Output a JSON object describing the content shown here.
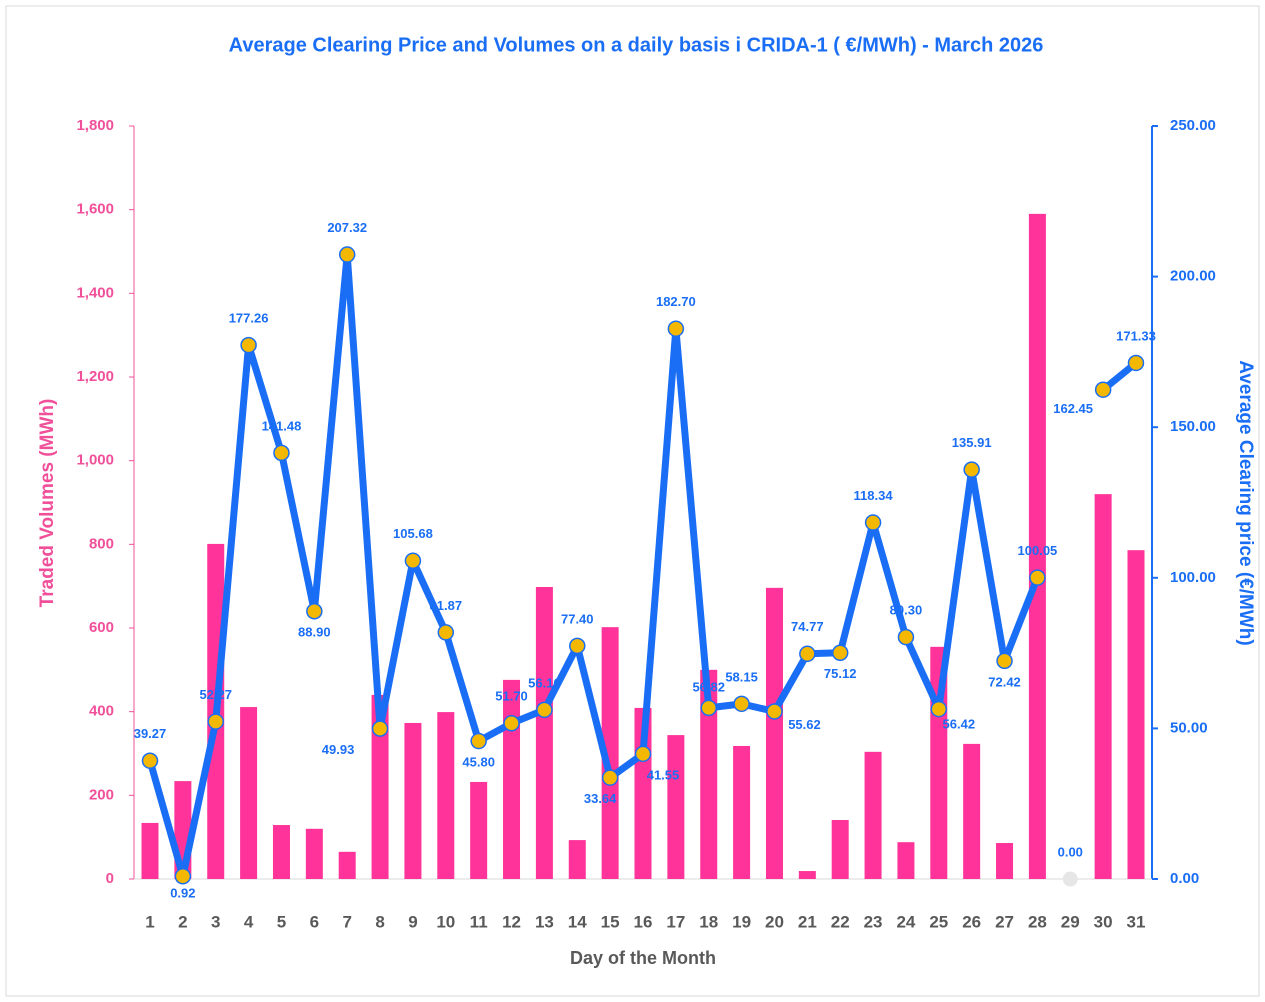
{
  "chart_data": {
    "type": "bar-line",
    "title": "Average Clearing Price and Volumes on a daily basis i CRIDA-1 ( €/MWh) - March 2026",
    "x_label": "Day of the Month",
    "y_label": "Traded Volumes (MWh)",
    "y2_label": "Average Clearing price (€/MWh)",
    "categories": [
      "1",
      "2",
      "3",
      "4",
      "5",
      "6",
      "7",
      "8",
      "9",
      "10",
      "11",
      "12",
      "13",
      "14",
      "15",
      "16",
      "17",
      "18",
      "19",
      "20",
      "21",
      "22",
      "23",
      "24",
      "25",
      "26",
      "27",
      "28",
      "29",
      "30",
      "31"
    ],
    "ylim": [
      0,
      1800
    ],
    "yticks": [
      0,
      200,
      400,
      600,
      800,
      {
        "value": 1000,
        "label": "1,000"
      },
      {
        "value": 1200,
        "label": "1,200"
      },
      {
        "value": 1400,
        "label": "1,400"
      },
      {
        "value": 1600,
        "label": "1,600"
      },
      {
        "value": 1800,
        "label": "1,800"
      }
    ],
    "y2lim": [
      0,
      250
    ],
    "y2ticks": [
      {
        "value": 0,
        "label": "0.00"
      },
      {
        "value": 50,
        "label": "50.00"
      },
      {
        "value": 100,
        "label": "100.00"
      },
      {
        "value": 150,
        "label": "150.00"
      },
      {
        "value": 200,
        "label": "200.00"
      },
      {
        "value": 250,
        "label": "250.00"
      }
    ],
    "series": [
      {
        "type": "bar",
        "axis": "y",
        "color": "#ff3399",
        "values": [
          134,
          234,
          801,
          411,
          129,
          120,
          65,
          440,
          373,
          399,
          232,
          476,
          698,
          93,
          602,
          409,
          344,
          500,
          318,
          696,
          19,
          141,
          304,
          88,
          555,
          323,
          86,
          1590,
          0,
          920,
          786
        ]
      },
      {
        "type": "line",
        "axis": "y2",
        "color": "#1a6ef5",
        "marker_color": "#f5b800",
        "values": [
          39.27,
          0.92,
          52.27,
          177.26,
          141.48,
          88.9,
          207.32,
          49.93,
          105.68,
          81.87,
          45.8,
          51.7,
          56.16,
          77.4,
          33.64,
          41.55,
          182.7,
          56.82,
          58.15,
          55.62,
          74.77,
          75.12,
          118.34,
          80.3,
          56.42,
          135.91,
          72.42,
          100.05,
          0,
          162.45,
          171.33
        ],
        "value_labels": [
          "39.27",
          "0.92",
          "52.27",
          "177.26",
          "141.48",
          "88.90",
          "207.32",
          "49.93",
          "105.68",
          "81.87",
          "45.80",
          "51.70",
          "56.16",
          "77.40",
          "33.64",
          "41.55",
          "182.70",
          "56.82",
          "58.15",
          "55.62",
          "74.77",
          "75.12",
          "118.34",
          "80.30",
          "56.42",
          "135.91",
          "72.42",
          "100.05",
          "0.00",
          "162.45",
          "171.33"
        ]
      }
    ]
  }
}
